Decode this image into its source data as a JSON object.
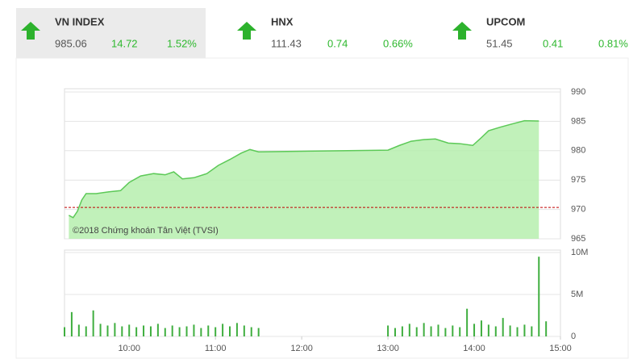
{
  "header": {
    "tabs": [
      {
        "name": "VN INDEX",
        "value": 985.06,
        "change": 14.72,
        "percent": "1.52%"
      },
      {
        "name": "HNX",
        "value": 111.43,
        "change": 0.74,
        "percent": "0.66%"
      },
      {
        "name": "UPCOM",
        "value": 51.45,
        "change": 0.41,
        "percent": "0.81%"
      }
    ]
  },
  "chart_data": [
    {
      "type": "area",
      "x": [
        "09:18",
        "09:21",
        "09:24",
        "09:27",
        "09:30",
        "09:37",
        "09:46",
        "09:54",
        "10:00",
        "10:08",
        "10:17",
        "10:25",
        "10:31",
        "10:37",
        "10:45",
        "10:54",
        "11:02",
        "11:10",
        "11:18",
        "11:24",
        "11:30",
        "13:00",
        "13:08",
        "13:16",
        "13:25",
        "13:33",
        "13:42",
        "13:50",
        "13:59",
        "14:04",
        "14:10",
        "14:18",
        "14:27",
        "14:35",
        "14:45"
      ],
      "values": [
        969.0,
        968.6,
        969.7,
        971.6,
        972.7,
        972.7,
        973.0,
        973.2,
        974.6,
        975.7,
        976.1,
        975.9,
        976.4,
        975.2,
        975.4,
        976.1,
        977.5,
        978.5,
        979.6,
        980.2,
        979.8,
        980.1,
        980.9,
        981.6,
        981.9,
        982.0,
        981.3,
        981.2,
        980.9,
        982.0,
        983.4,
        984.0,
        984.6,
        985.1,
        985.06
      ],
      "color": "#5cc957",
      "fill": "#b6efae",
      "reference": 970.34,
      "reference_color": "#c00000",
      "xlim": [
        "09:15",
        "15:00"
      ],
      "ylim": [
        965,
        990
      ],
      "yticks": [
        965,
        970,
        975,
        980,
        985,
        990
      ],
      "grid": true,
      "annotation": "©2018 Chứng khoán Tân Việt (TVSI)"
    },
    {
      "type": "bar",
      "x": [
        "09:15",
        "09:20",
        "09:25",
        "09:30",
        "09:35",
        "09:40",
        "09:45",
        "09:50",
        "09:55",
        "10:00",
        "10:05",
        "10:10",
        "10:15",
        "10:20",
        "10:25",
        "10:30",
        "10:35",
        "10:40",
        "10:45",
        "10:50",
        "10:55",
        "11:00",
        "11:05",
        "11:10",
        "11:15",
        "11:20",
        "11:25",
        "11:30",
        "13:00",
        "13:05",
        "13:10",
        "13:15",
        "13:20",
        "13:25",
        "13:30",
        "13:35",
        "13:40",
        "13:45",
        "13:50",
        "13:55",
        "14:00",
        "14:05",
        "14:10",
        "14:15",
        "14:20",
        "14:25",
        "14:30",
        "14:35",
        "14:40",
        "14:45",
        "14:50"
      ],
      "values": [
        1100000,
        2900000,
        1400000,
        1200000,
        3100000,
        1500000,
        1300000,
        1600000,
        1200000,
        1400000,
        1100000,
        1300000,
        1200000,
        1500000,
        1000000,
        1300000,
        1100000,
        1200000,
        1400000,
        1000000,
        1300000,
        1100000,
        1500000,
        1200000,
        1600000,
        1300000,
        1100000,
        1000000,
        1300000,
        1000000,
        1200000,
        1500000,
        1100000,
        1600000,
        1200000,
        1400000,
        1000000,
        1300000,
        1100000,
        3300000,
        1500000,
        1900000,
        1400000,
        1200000,
        2200000,
        1300000,
        1100000,
        1400000,
        1200000,
        9500000,
        1800000
      ],
      "color": "#3fae3f",
      "xlim": [
        "09:15",
        "15:00"
      ],
      "xticks": [
        "10:00",
        "11:00",
        "12:00",
        "13:00",
        "14:00",
        "15:00"
      ],
      "ylim": [
        0,
        10000000
      ],
      "yticks": [
        0,
        {
          "value": 5000000,
          "label": "5M"
        },
        {
          "value": 10000000,
          "label": "10M"
        }
      ],
      "grid": true
    }
  ]
}
